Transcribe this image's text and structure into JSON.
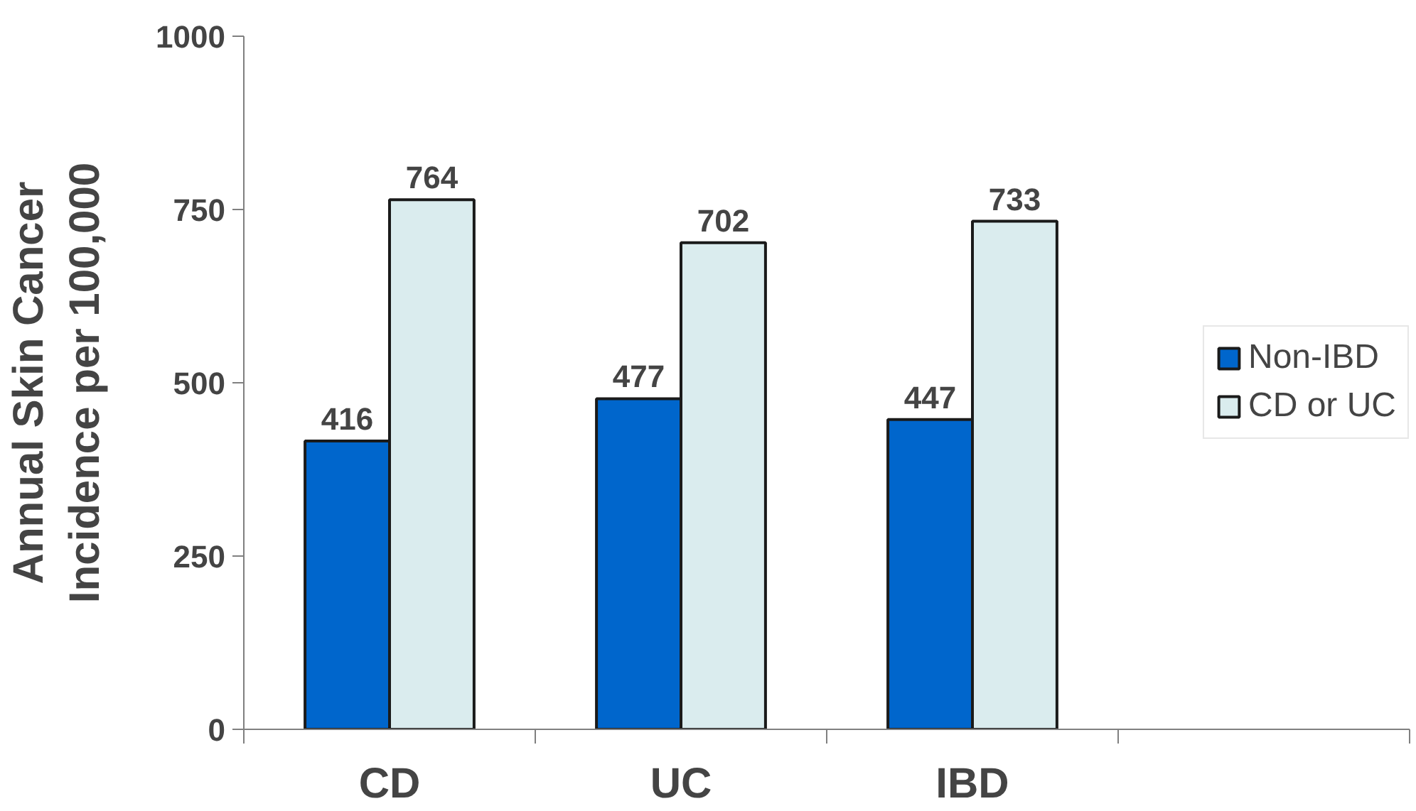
{
  "chart_data": {
    "type": "bar",
    "ylabel": "Annual Skin Cancer\nIncidence per 100,000",
    "categories": [
      "CD",
      "UC",
      "IBD",
      null
    ],
    "series": [
      {
        "name": "Non-IBD",
        "color": "#0066cc",
        "values": [
          416,
          477,
          447,
          null
        ]
      },
      {
        "name": "CD or UC",
        "color": "#daecee",
        "values": [
          764,
          702,
          733,
          null
        ]
      }
    ],
    "ylim": [
      0,
      1000
    ],
    "yticks": [
      0,
      250,
      500,
      750,
      1000
    ],
    "grid": false,
    "legend": "right",
    "data_labels": true
  }
}
